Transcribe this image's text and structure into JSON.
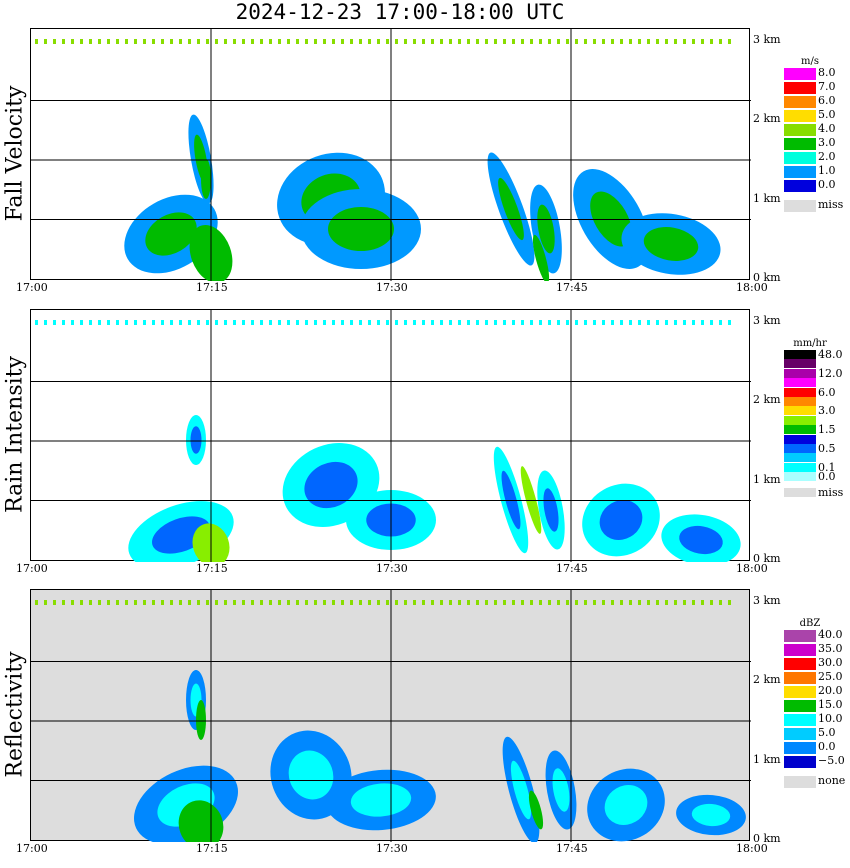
{
  "title": "2024-12-23   17:00-18:00 UTC",
  "chart_data": [
    {
      "type": "heatmap",
      "name": "Fall Velocity",
      "ylabel": "Fall Velocity",
      "xlabel": "",
      "x_ticks": [
        "17:00",
        "17:15",
        "17:30",
        "17:45",
        "18:00"
      ],
      "y_ticks": [
        "0 km",
        "1 km",
        "2 km",
        "3 km"
      ],
      "ylim": [
        0,
        3
      ],
      "legend": {
        "unit": "m/s",
        "entries": [
          {
            "label": "8.0",
            "color": "#ff00ff"
          },
          {
            "label": "7.0",
            "color": "#ff0000"
          },
          {
            "label": "6.0",
            "color": "#ff8800"
          },
          {
            "label": "5.0",
            "color": "#ffdd00"
          },
          {
            "label": "4.0",
            "color": "#88dd00"
          },
          {
            "label": "3.0",
            "color": "#00bb00"
          },
          {
            "label": "2.0",
            "color": "#00ffdd"
          },
          {
            "label": "1.0",
            "color": "#0099ff"
          },
          {
            "label": "0.0",
            "color": "#0000dd"
          },
          {
            "label": "miss",
            "color": "#dddddd"
          }
        ]
      },
      "background": "#ffffff"
    },
    {
      "type": "heatmap",
      "name": "Rain Intensity",
      "ylabel": "Rain Intensity",
      "xlabel": "",
      "x_ticks": [
        "17:00",
        "17:15",
        "17:30",
        "17:45",
        "18:00"
      ],
      "y_ticks": [
        "0 km",
        "1 km",
        "2 km",
        "3 km"
      ],
      "ylim": [
        0,
        3
      ],
      "legend": {
        "unit": "mm/hr",
        "entries": [
          {
            "label": "48.0",
            "color": "#000000"
          },
          {
            "label": "",
            "color": "#660066"
          },
          {
            "label": "12.0",
            "color": "#aa00aa"
          },
          {
            "label": "",
            "color": "#ff00ff"
          },
          {
            "label": "6.0",
            "color": "#ff0000"
          },
          {
            "label": "",
            "color": "#ff8800"
          },
          {
            "label": "3.0",
            "color": "#ffdd00"
          },
          {
            "label": "",
            "color": "#88ee00"
          },
          {
            "label": "1.5",
            "color": "#00bb00"
          },
          {
            "label": "",
            "color": "#0000dd"
          },
          {
            "label": "0.5",
            "color": "#0066ff"
          },
          {
            "label": "",
            "color": "#00ccff"
          },
          {
            "label": "0.1",
            "color": "#00ffff"
          },
          {
            "label": "0.0",
            "color": "#aaffff"
          },
          {
            "label": "miss",
            "color": "#dddddd"
          }
        ]
      },
      "background": "#ffffff"
    },
    {
      "type": "heatmap",
      "name": "Reflectivity",
      "ylabel": "Reflectivity",
      "xlabel": "",
      "x_ticks": [
        "17:00",
        "17:15",
        "17:30",
        "17:45",
        "18:00"
      ],
      "y_ticks": [
        "0 km",
        "1 km",
        "2 km",
        "3 km"
      ],
      "ylim": [
        0,
        3
      ],
      "legend": {
        "unit": "dBZ",
        "entries": [
          {
            "label": "40.0",
            "color": "#aa44aa"
          },
          {
            "label": "35.0",
            "color": "#cc00cc"
          },
          {
            "label": "30.0",
            "color": "#ff0000"
          },
          {
            "label": "25.0",
            "color": "#ff7700"
          },
          {
            "label": "20.0",
            "color": "#ffdd00"
          },
          {
            "label": "15.0",
            "color": "#00bb00"
          },
          {
            "label": "10.0",
            "color": "#00ffff"
          },
          {
            "label": "5.0",
            "color": "#00ccff"
          },
          {
            "label": "0.0",
            "color": "#0088ff"
          },
          {
            "label": "−5.0",
            "color": "#0000cc"
          },
          {
            "label": "none",
            "color": "#dddddd"
          }
        ]
      },
      "background": "#dddddd"
    }
  ]
}
